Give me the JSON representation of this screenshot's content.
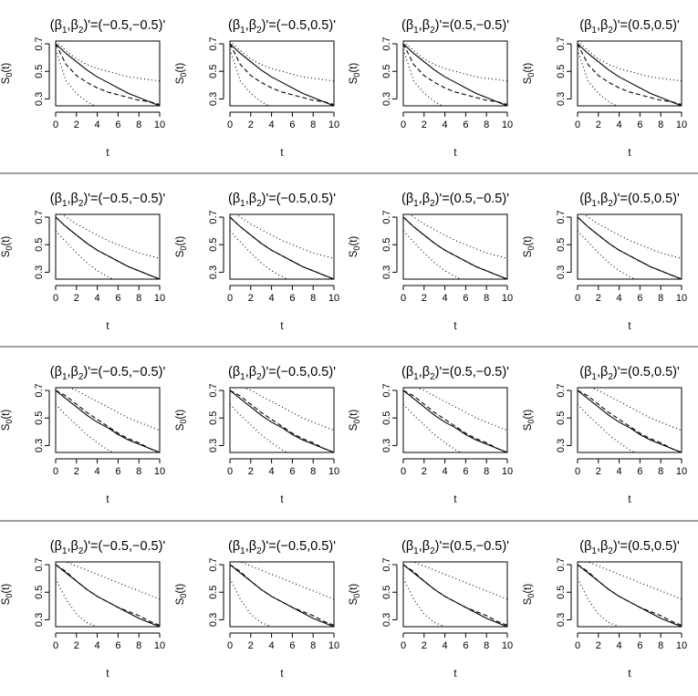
{
  "chart_data": {
    "type": "line",
    "layout": {
      "rows": 4,
      "cols": 4
    },
    "ylabel_prefix": "S",
    "ylabel_sub": "0",
    "ylabel_suffix": "(t)",
    "xlabel": "t",
    "xticks": [
      0,
      2,
      4,
      6,
      8,
      10
    ],
    "yticks": [
      0.3,
      0.5,
      0.7
    ],
    "xlim": [
      0,
      10
    ],
    "ylim": [
      0.25,
      0.72
    ],
    "panel_titles": [
      {
        "prefix": "(β",
        "sub1": "1",
        "mid": ",β",
        "sub2": "2",
        "suffix": ")'=(−0.5,−0.5)'"
      },
      {
        "prefix": "(β",
        "sub1": "1",
        "mid": ",β",
        "sub2": "2",
        "suffix": ")'=(−0.5,0.5)'"
      },
      {
        "prefix": "(β",
        "sub1": "1",
        "mid": ",β",
        "sub2": "2",
        "suffix": ")'=(0.5,−0.5)'"
      },
      {
        "prefix": "(β",
        "sub1": "1",
        "mid": ",β",
        "sub2": "2",
        "suffix": ")'=(0.5,0.5)'"
      }
    ],
    "rows": [
      {
        "true": {
          "t": [
            0,
            1,
            2,
            3,
            4,
            5,
            6,
            7,
            8,
            9,
            10
          ],
          "y": [
            0.7,
            0.63,
            0.57,
            0.51,
            0.46,
            0.42,
            0.38,
            0.34,
            0.31,
            0.28,
            0.25
          ]
        },
        "estimate": {
          "t": [
            0,
            1,
            2,
            3,
            4,
            5,
            6,
            7,
            8,
            9,
            10
          ],
          "y": [
            0.7,
            0.55,
            0.47,
            0.42,
            0.38,
            0.35,
            0.33,
            0.31,
            0.29,
            0.28,
            0.26
          ]
        },
        "upper": {
          "t": [
            0,
            1,
            2,
            3,
            4,
            5,
            6,
            7,
            8,
            9,
            10
          ],
          "y": [
            0.72,
            0.65,
            0.59,
            0.55,
            0.52,
            0.5,
            0.48,
            0.46,
            0.45,
            0.44,
            0.43
          ]
        },
        "lower": {
          "t": [
            0,
            1,
            2,
            3,
            4
          ],
          "y": [
            0.66,
            0.43,
            0.34,
            0.28,
            0.24
          ]
        }
      },
      {
        "true": {
          "t": [
            0,
            1,
            2,
            3,
            4,
            5,
            6,
            7,
            8,
            9,
            10
          ],
          "y": [
            0.7,
            0.63,
            0.57,
            0.51,
            0.46,
            0.42,
            0.38,
            0.34,
            0.31,
            0.28,
            0.25
          ]
        },
        "estimate": {
          "t": [
            0,
            1,
            2,
            3,
            4,
            5,
            6,
            7,
            8,
            9,
            10
          ],
          "y": [
            0.7,
            0.63,
            0.57,
            0.51,
            0.46,
            0.42,
            0.38,
            0.34,
            0.31,
            0.28,
            0.25
          ]
        },
        "upper": {
          "t": [
            0,
            1,
            2,
            3,
            4,
            5,
            6,
            7,
            8,
            9,
            10
          ],
          "y": [
            0.76,
            0.7,
            0.65,
            0.61,
            0.57,
            0.53,
            0.5,
            0.47,
            0.44,
            0.42,
            0.4
          ]
        },
        "lower": {
          "t": [
            0,
            1,
            2,
            3,
            4,
            5,
            6
          ],
          "y": [
            0.6,
            0.52,
            0.44,
            0.37,
            0.31,
            0.27,
            0.23
          ]
        }
      },
      {
        "true": {
          "t": [
            0,
            1,
            2,
            3,
            4,
            5,
            6,
            7,
            8,
            9,
            10
          ],
          "y": [
            0.7,
            0.64,
            0.58,
            0.52,
            0.47,
            0.43,
            0.38,
            0.34,
            0.31,
            0.28,
            0.25
          ]
        },
        "estimate": {
          "t": [
            0,
            1,
            2,
            3,
            4,
            5,
            6,
            7,
            8,
            9,
            10
          ],
          "y": [
            0.7,
            0.66,
            0.6,
            0.54,
            0.49,
            0.44,
            0.39,
            0.35,
            0.32,
            0.28,
            0.25
          ]
        },
        "upper": {
          "t": [
            0,
            1,
            2,
            3,
            4,
            5,
            6,
            7,
            8,
            9,
            10
          ],
          "y": [
            0.77,
            0.73,
            0.7,
            0.66,
            0.62,
            0.58,
            0.54,
            0.5,
            0.47,
            0.44,
            0.41
          ]
        },
        "lower": {
          "t": [
            0,
            1,
            2,
            3,
            4,
            5,
            6
          ],
          "y": [
            0.6,
            0.52,
            0.45,
            0.38,
            0.32,
            0.27,
            0.23
          ]
        }
      },
      {
        "true": {
          "t": [
            0,
            1,
            2,
            3,
            4,
            5,
            6,
            7,
            8,
            9,
            10
          ],
          "y": [
            0.7,
            0.64,
            0.58,
            0.52,
            0.47,
            0.43,
            0.39,
            0.35,
            0.31,
            0.28,
            0.25
          ]
        },
        "estimate": {
          "t": [
            0,
            1,
            2,
            3,
            4,
            5,
            6,
            7,
            8,
            9,
            10
          ],
          "y": [
            0.7,
            0.65,
            0.58,
            0.52,
            0.47,
            0.43,
            0.39,
            0.36,
            0.33,
            0.29,
            0.26
          ]
        },
        "upper": {
          "t": [
            0,
            1,
            2,
            3,
            4,
            5,
            6,
            7,
            8,
            9,
            10
          ],
          "y": [
            0.78,
            0.72,
            0.69,
            0.66,
            0.63,
            0.6,
            0.57,
            0.54,
            0.51,
            0.48,
            0.45
          ]
        },
        "lower": {
          "t": [
            0,
            1,
            2,
            3,
            4
          ],
          "y": [
            0.6,
            0.45,
            0.34,
            0.28,
            0.25
          ]
        }
      }
    ]
  }
}
